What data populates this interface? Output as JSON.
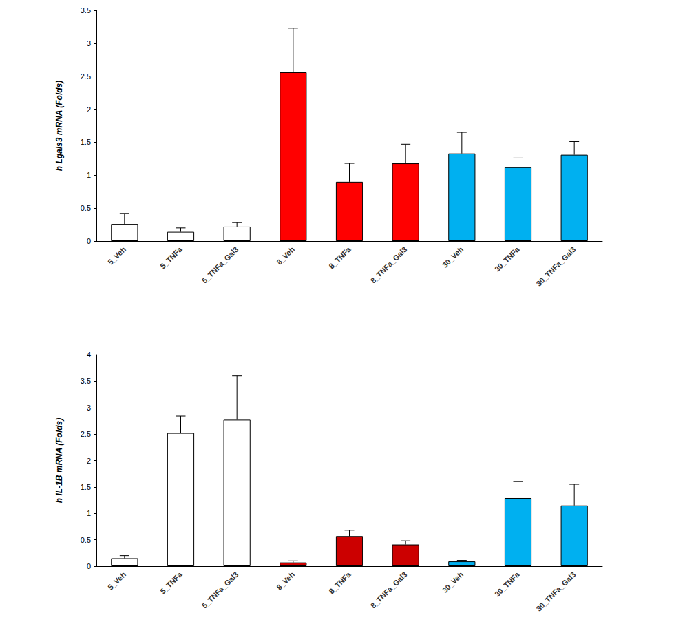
{
  "chart_data": [
    {
      "type": "bar",
      "y_label": "h Lgals3 mRNA (Folds)",
      "categories": [
        "5_Veh",
        "5_TNFa",
        "5_TNFa_Gal3",
        "8_Veh",
        "8_TNFa",
        "8_TNFa_Gal3",
        "30_Veh",
        "30_TNFa",
        "30_TNFa_Gal3"
      ],
      "values": [
        0.26,
        0.14,
        0.22,
        2.56,
        0.9,
        1.18,
        1.33,
        1.12,
        1.31
      ],
      "errors": [
        0.16,
        0.06,
        0.06,
        0.67,
        0.28,
        0.29,
        0.32,
        0.14,
        0.2
      ],
      "colors": [
        "#ffffff",
        "#ffffff",
        "#ffffff",
        "#ff0000",
        "#ff0000",
        "#ff0000",
        "#00b0f0",
        "#00b0f0",
        "#00b0f0"
      ],
      "ylim": [
        0,
        3.5
      ],
      "yticks": [
        0,
        0.5,
        1,
        1.5,
        2,
        2.5,
        3,
        3.5
      ],
      "grid": false
    },
    {
      "type": "bar",
      "y_label": "h IL-1B mRNA (Folds)",
      "categories": [
        "5_Veh",
        "5_TNFa",
        "5_TNFa_Gal3",
        "8_Veh",
        "8_TNFa",
        "8_TNFa_Gal3",
        "30_Veh",
        "30_TNFa",
        "30_TNFa_Gal3"
      ],
      "values": [
        0.15,
        2.52,
        2.77,
        0.07,
        0.57,
        0.41,
        0.09,
        1.29,
        1.15
      ],
      "errors": [
        0.05,
        0.32,
        0.83,
        0.03,
        0.11,
        0.07,
        0.02,
        0.31,
        0.4
      ],
      "colors": [
        "#ffffff",
        "#ffffff",
        "#ffffff",
        "#cc0000",
        "#cc0000",
        "#cc0000",
        "#00b0f0",
        "#00b0f0",
        "#00b0f0"
      ],
      "ylim": [
        0,
        4
      ],
      "yticks": [
        0,
        0.5,
        1,
        1.5,
        2,
        2.5,
        3,
        3.5,
        4
      ],
      "grid": false
    }
  ]
}
